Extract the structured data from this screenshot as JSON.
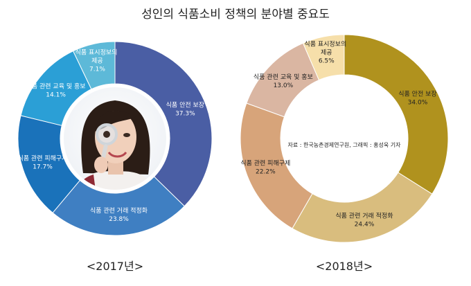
{
  "page_title": "성인의 식품소비 정책의 분야별 중요도",
  "source_note": "자료 : 한국농촌경제연구원, 그래픽 : 홍성욱 기자",
  "chart_data": [
    {
      "type": "pie",
      "variant": "donut",
      "caption": "<2017년>",
      "colors": [
        "#4a5ea4",
        "#3f7fc2",
        "#1a72ba",
        "#2b9fd6",
        "#5db9d8"
      ],
      "center_image": "woman-with-magnifying-glass",
      "slices": [
        {
          "label": "식품 안전 보장",
          "value": 37.3,
          "value_text": "37.3%"
        },
        {
          "label": "식품 관련 거래 적정화",
          "value": 23.8,
          "value_text": "23.8%"
        },
        {
          "label": "식품 관련 피해구제",
          "value": 17.7,
          "value_text": "17.7%"
        },
        {
          "label": "식품 관련 교육 및 홍보",
          "value": 14.1,
          "value_text": "14.1%"
        },
        {
          "label": "식품 표시정보의 제공",
          "value": 7.1,
          "value_text": "7.1%"
        }
      ]
    },
    {
      "type": "pie",
      "variant": "donut",
      "caption": "<2018년>",
      "colors": [
        "#b0921e",
        "#d9bd7e",
        "#d7a47a",
        "#dab6a2",
        "#f6dfaa"
      ],
      "slices": [
        {
          "label": "식품 안전 보장",
          "value": 34.0,
          "value_text": "34.0%"
        },
        {
          "label": "식품 관련 거래 적정화",
          "value": 24.4,
          "value_text": "24.4%"
        },
        {
          "label": "식품 관련 피해구제",
          "value": 22.2,
          "value_text": "22.2%"
        },
        {
          "label": "식품 관련 교육 및 홍보",
          "value": 13.0,
          "value_text": "13.0%"
        },
        {
          "label": "식품 표시정보의 제공",
          "value": 6.5,
          "value_text": "6.5%"
        }
      ]
    }
  ]
}
